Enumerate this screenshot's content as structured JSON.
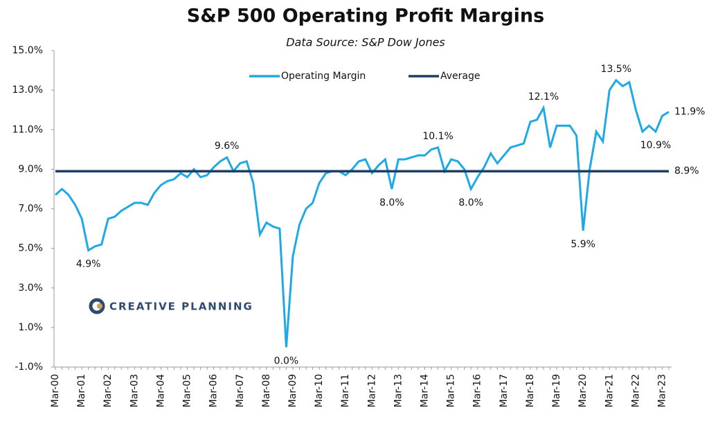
{
  "chart_data": {
    "type": "line",
    "title": "S&P 500 Operating Profit Margins",
    "subtitle": "Data Source: S&P Dow Jones",
    "logo": "CREATIVE PLANNING",
    "legend": "top",
    "grid": false,
    "categories": [
      "Mar-00",
      null,
      null,
      null,
      "Mar-01",
      null,
      null,
      null,
      "Mar-02",
      null,
      null,
      null,
      "Mar-03",
      null,
      null,
      null,
      "Mar-04",
      null,
      null,
      null,
      "Mar-05",
      null,
      null,
      null,
      "Mar-06",
      null,
      null,
      null,
      "Mar-07",
      null,
      null,
      null,
      "Mar-08",
      null,
      null,
      null,
      "Mar-09",
      null,
      null,
      null,
      "Mar-10",
      null,
      null,
      null,
      "Mar-11",
      null,
      null,
      null,
      "Mar-12",
      null,
      null,
      null,
      "Mar-13",
      null,
      null,
      null,
      "Mar-14",
      null,
      null,
      null,
      "Mar-15",
      null,
      null,
      null,
      "Mar-16",
      null,
      null,
      null,
      "Mar-17",
      null,
      null,
      null,
      "Mar-18",
      null,
      null,
      null,
      "Mar-19",
      null,
      null,
      null,
      "Mar-20",
      null,
      null,
      null,
      "Mar-21",
      null,
      null,
      null,
      "Mar-22",
      null,
      null,
      null,
      "Mar-23",
      null
    ],
    "series": [
      {
        "name": "Operating Margin",
        "color": "#1ea9e6",
        "values": [
          7.7,
          8.0,
          7.7,
          7.2,
          6.5,
          4.9,
          5.1,
          5.2,
          6.5,
          6.6,
          6.9,
          7.1,
          7.3,
          7.3,
          7.2,
          7.8,
          8.2,
          8.4,
          8.5,
          8.8,
          8.6,
          9.0,
          8.6,
          8.7,
          9.1,
          9.4,
          9.6,
          8.9,
          9.3,
          9.4,
          8.3,
          5.7,
          6.3,
          6.1,
          6.0,
          0.0,
          4.6,
          6.2,
          7.0,
          7.3,
          8.3,
          8.8,
          8.9,
          8.9,
          8.7,
          9.0,
          9.4,
          9.5,
          8.8,
          9.2,
          9.5,
          8.0,
          9.5,
          9.5,
          9.6,
          9.7,
          9.7,
          10.0,
          10.1,
          8.9,
          9.5,
          9.4,
          9.0,
          8.0,
          8.6,
          9.1,
          9.8,
          9.3,
          9.7,
          10.1,
          10.2,
          10.3,
          11.4,
          11.5,
          12.1,
          10.1,
          11.2,
          11.2,
          11.2,
          10.7,
          5.9,
          9.0,
          10.9,
          10.4,
          13.0,
          13.5,
          13.2,
          13.4,
          12.0,
          10.9,
          11.2,
          10.9,
          11.7,
          11.9
        ],
        "value_labels": [
          null,
          null,
          null,
          null,
          null,
          "4.9%",
          null,
          null,
          null,
          null,
          null,
          null,
          null,
          null,
          null,
          null,
          null,
          null,
          null,
          null,
          null,
          null,
          null,
          null,
          null,
          null,
          "9.6%",
          null,
          null,
          null,
          null,
          null,
          null,
          null,
          null,
          "0.0%",
          null,
          null,
          null,
          null,
          null,
          null,
          null,
          null,
          null,
          null,
          null,
          null,
          null,
          null,
          null,
          "8.0%",
          null,
          null,
          null,
          null,
          null,
          null,
          "10.1%",
          null,
          null,
          null,
          null,
          "8.0%",
          null,
          null,
          null,
          null,
          null,
          null,
          null,
          null,
          null,
          null,
          "12.1%",
          null,
          null,
          null,
          null,
          null,
          "5.9%",
          null,
          null,
          null,
          null,
          "13.5%",
          null,
          null,
          null,
          null,
          null,
          "10.9%",
          null,
          "11.9%"
        ]
      },
      {
        "name": "Average",
        "color": "#1d3e66",
        "values": [
          8.9,
          8.9,
          8.9,
          8.9,
          8.9,
          8.9,
          8.9,
          8.9,
          8.9,
          8.9,
          8.9,
          8.9,
          8.9,
          8.9,
          8.9,
          8.9,
          8.9,
          8.9,
          8.9,
          8.9,
          8.9,
          8.9,
          8.9,
          8.9,
          8.9,
          8.9,
          8.9,
          8.9,
          8.9,
          8.9,
          8.9,
          8.9,
          8.9,
          8.9,
          8.9,
          8.9,
          8.9,
          8.9,
          8.9,
          8.9,
          8.9,
          8.9,
          8.9,
          8.9,
          8.9,
          8.9,
          8.9,
          8.9,
          8.9,
          8.9,
          8.9,
          8.9,
          8.9,
          8.9,
          8.9,
          8.9,
          8.9,
          8.9,
          8.9,
          8.9,
          8.9,
          8.9,
          8.9,
          8.9,
          8.9,
          8.9,
          8.9,
          8.9,
          8.9,
          8.9,
          8.9,
          8.9,
          8.9,
          8.9,
          8.9,
          8.9,
          8.9,
          8.9,
          8.9,
          8.9,
          8.9,
          8.9,
          8.9,
          8.9,
          8.9,
          8.9,
          8.9,
          8.9,
          8.9,
          8.9,
          8.9,
          8.9,
          8.9,
          8.9
        ],
        "value_labels": [
          null,
          null,
          null,
          null,
          null,
          null,
          null,
          null,
          null,
          null,
          null,
          null,
          null,
          null,
          null,
          null,
          null,
          null,
          null,
          null,
          null,
          null,
          null,
          null,
          null,
          null,
          null,
          null,
          null,
          null,
          null,
          null,
          null,
          null,
          null,
          null,
          null,
          null,
          null,
          null,
          null,
          null,
          null,
          null,
          null,
          null,
          null,
          null,
          null,
          null,
          null,
          null,
          null,
          null,
          null,
          null,
          null,
          null,
          null,
          null,
          null,
          null,
          null,
          null,
          null,
          null,
          null,
          null,
          null,
          null,
          null,
          null,
          null,
          null,
          null,
          null,
          null,
          null,
          null,
          null,
          null,
          null,
          null,
          null,
          null,
          null,
          null,
          null,
          null,
          null,
          null,
          null,
          null,
          "8.9%"
        ]
      }
    ],
    "ylim": [
      -1,
      15
    ],
    "yticks": [
      {
        "value": 15,
        "label": "15.0%"
      },
      {
        "value": 13,
        "label": "13.0%"
      },
      {
        "value": 11,
        "label": "11.0%"
      },
      {
        "value": 9,
        "label": "9.0%"
      },
      {
        "value": 7,
        "label": "7.0%"
      },
      {
        "value": 5,
        "label": "5.0%"
      },
      {
        "value": 3,
        "label": "3.0%"
      },
      {
        "value": 1,
        "label": "1.0%"
      },
      {
        "value": -1,
        "label": "-1.0%"
      }
    ]
  }
}
